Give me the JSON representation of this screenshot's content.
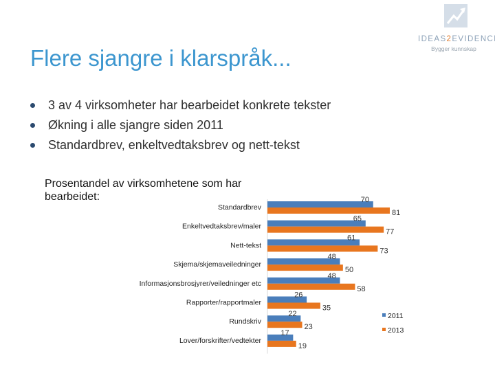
{
  "logo": {
    "name_part1": "IDEAS",
    "name_part2": "2",
    "name_part3": "EVIDENCE",
    "tagline": "Bygger kunnskap",
    "icon": "growth-chart-icon"
  },
  "slide": {
    "title": "Flere sjangre i klarspråk...",
    "bullets": [
      "3 av 4 virksomheter har bearbeidet konkrete tekster",
      "Økning i alle sjangre siden 2011",
      "Standardbrev, enkeltvedtaksbrev og nett-tekst"
    ]
  },
  "chart_data": {
    "type": "bar",
    "orientation": "horizontal",
    "title": "Prosentandel av virksomhetene som har\nbearbeidet:",
    "categories": [
      "Standardbrev",
      "Enkeltvedtaksbrev/maler",
      "Nett-tekst",
      "Skjema/skjemaveiledninger",
      "Informasjonsbrosjyrer/veiledninger etc",
      "Rapporter/rapportmaler",
      "Rundskriv",
      "Lover/forskrifter/vedtekter"
    ],
    "series": [
      {
        "name": "2011",
        "color": "#4a7ebb",
        "values": [
          70,
          65,
          61,
          48,
          48,
          26,
          22,
          17
        ]
      },
      {
        "name": "2013",
        "color": "#e8761f",
        "values": [
          81,
          77,
          73,
          50,
          58,
          35,
          23,
          19
        ]
      }
    ],
    "xlim": [
      0,
      100
    ],
    "grid": false,
    "legend_position": "right"
  }
}
